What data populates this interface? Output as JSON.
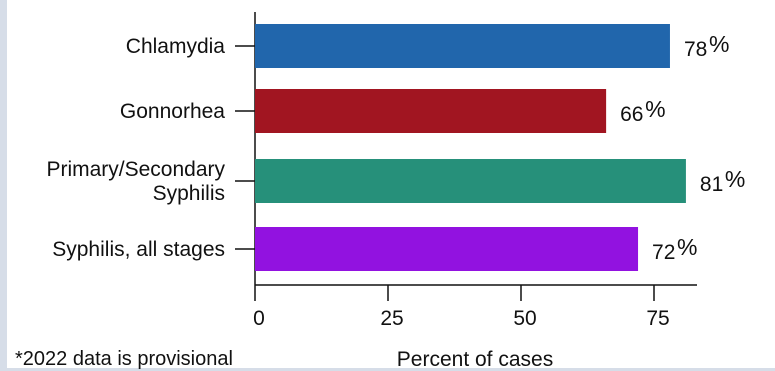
{
  "chart_data": {
    "type": "bar",
    "orientation": "horizontal",
    "categories": [
      [
        "Chlamydia"
      ],
      [
        "Gonnorhea"
      ],
      [
        "Primary/Secondary",
        "Syphilis"
      ],
      [
        "Syphilis, all stages"
      ]
    ],
    "values": [
      78,
      66,
      81,
      72
    ],
    "colors": [
      "#2166ac",
      "#a11521",
      "#26907a",
      "#9212e0"
    ],
    "value_suffix": "%",
    "xlabel": "Percent of cases",
    "xticks": [
      0,
      25,
      50,
      75
    ],
    "xlim": [
      0,
      82
    ],
    "grid": false
  },
  "footnote": "*2022 data is provisional"
}
